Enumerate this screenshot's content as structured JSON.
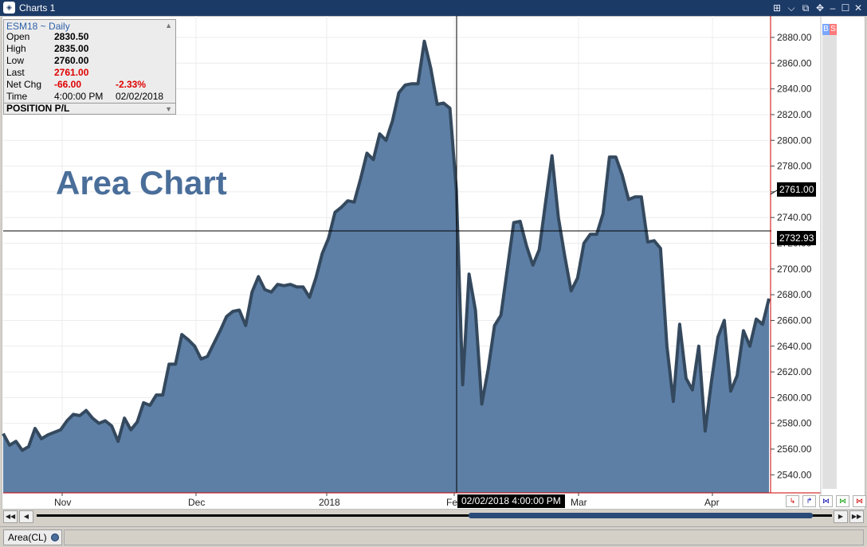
{
  "window": {
    "title": "Charts 1",
    "app_icon": "chart-app-icon"
  },
  "infobox": {
    "header": "ESM18 ~ Daily",
    "rows": [
      {
        "label": "Open",
        "value": "2830.50",
        "value2": ""
      },
      {
        "label": "High",
        "value": "2835.00",
        "value2": ""
      },
      {
        "label": "Low",
        "value": "2760.00",
        "value2": ""
      },
      {
        "label": "Last",
        "value": "2761.00",
        "value2": ""
      },
      {
        "label": "Net Chg",
        "value": "-66.00",
        "value2": "-2.33%"
      },
      {
        "label": "Time",
        "value": "4:00:00 PM",
        "value2": "02/02/2018"
      }
    ],
    "position_label": "POSITION P/L"
  },
  "overlay_title": "Area Chart",
  "price_axis": {
    "labels": [
      "2880.00",
      "2860.00",
      "2840.00",
      "2820.00",
      "2800.00",
      "2780.00",
      "2760.00",
      "2740.00",
      "2720.00",
      "2700.00",
      "2680.00",
      "2660.00",
      "2640.00",
      "2620.00",
      "2600.00",
      "2580.00",
      "2560.00",
      "2540.00"
    ],
    "last_price_badge": "2761.00",
    "crosshair_price_badge": "2732.93"
  },
  "date_axis": {
    "labels": [
      "Nov",
      "Dec",
      "2018",
      "Feb",
      "Mar",
      "Apr"
    ],
    "crosshair_time_badge": "02/02/2018 4:00:00 PM"
  },
  "bs_panel": {
    "buy": "B",
    "sell": "S"
  },
  "status_tab": {
    "label": "Area(CL)"
  },
  "colors": {
    "area_fill": "#5d7fa6",
    "area_line": "#34495e",
    "crosshair": "#000000",
    "price_axis_border": "#cc0000"
  },
  "chart_data": {
    "type": "area",
    "title": "",
    "xlabel": "",
    "ylabel": "",
    "ylim": [
      2530,
      2890
    ],
    "x_axis_ticks": [
      "Nov",
      "Dec",
      "2018",
      "Feb",
      "Mar",
      "Apr"
    ],
    "series": [
      {
        "values": [
          2572,
          2563,
          2566,
          2559,
          2562,
          2576,
          2568,
          2571,
          2573,
          2575,
          2582,
          2587,
          2586,
          2590,
          2584,
          2580,
          2582,
          2578,
          2566,
          2584,
          2575,
          2581,
          2596,
          2594,
          2602,
          2602,
          2626,
          2626,
          2649,
          2645,
          2640,
          2630,
          2632,
          2642,
          2652,
          2663,
          2667,
          2668,
          2656,
          2682,
          2694,
          2684,
          2682,
          2688,
          2687,
          2688,
          2686,
          2686,
          2678,
          2693,
          2712,
          2724,
          2744,
          2748,
          2753,
          2752,
          2770,
          2790,
          2785,
          2805,
          2800,
          2815,
          2837,
          2843,
          2844,
          2844,
          2877,
          2856,
          2828,
          2829,
          2825,
          2762,
          2610,
          2696,
          2668,
          2595,
          2622,
          2656,
          2664,
          2700,
          2736,
          2737,
          2718,
          2703,
          2715,
          2752,
          2788,
          2740,
          2710,
          2683,
          2693,
          2720,
          2727,
          2727,
          2743,
          2787,
          2787,
          2773,
          2754,
          2756,
          2756,
          2721,
          2722,
          2716,
          2640,
          2597,
          2657,
          2615,
          2606,
          2640,
          2574,
          2613,
          2647,
          2660,
          2605,
          2617,
          2652,
          2640,
          2661,
          2657,
          2677
        ]
      }
    ]
  }
}
